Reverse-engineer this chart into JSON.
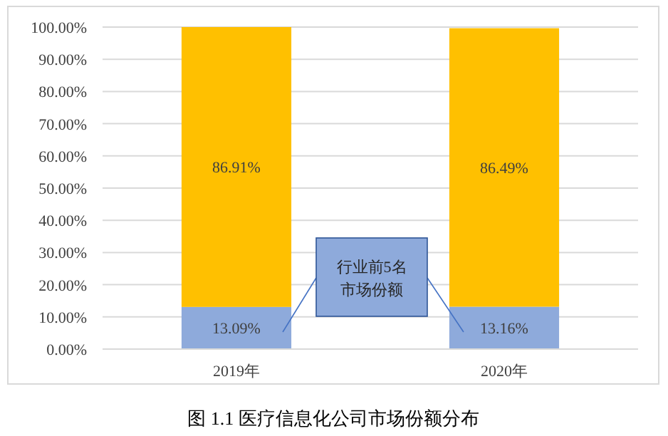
{
  "chart_data": {
    "type": "bar",
    "stacked": true,
    "title": "图 1.1 医疗信息化公司市场份额分布",
    "categories": [
      "2019年",
      "2020年"
    ],
    "series": [
      {
        "color": "#8eaadb",
        "values": [
          13.09,
          13.16
        ],
        "value_labels": [
          "13.09%",
          "13.16%"
        ]
      },
      {
        "color": "#ffc000",
        "values": [
          86.91,
          86.49
        ],
        "value_labels": [
          "86.91%",
          "86.49%"
        ]
      }
    ],
    "ylim": [
      0,
      100
    ],
    "yticks": [
      {
        "value": 0,
        "label": "0.00%"
      },
      {
        "value": 10,
        "label": "10.00%"
      },
      {
        "value": 20,
        "label": "20.00%"
      },
      {
        "value": 30,
        "label": "30.00%"
      },
      {
        "value": 40,
        "label": "40.00%"
      },
      {
        "value": 50,
        "label": "50.00%"
      },
      {
        "value": 60,
        "label": "60.00%"
      },
      {
        "value": 70,
        "label": "70.00%"
      },
      {
        "value": 80,
        "label": "80.00%"
      },
      {
        "value": 90,
        "label": "90.00%"
      },
      {
        "value": 100,
        "label": "100.00%"
      }
    ],
    "grid": "y",
    "annotations": [
      "行业前5名市场份额"
    ]
  }
}
